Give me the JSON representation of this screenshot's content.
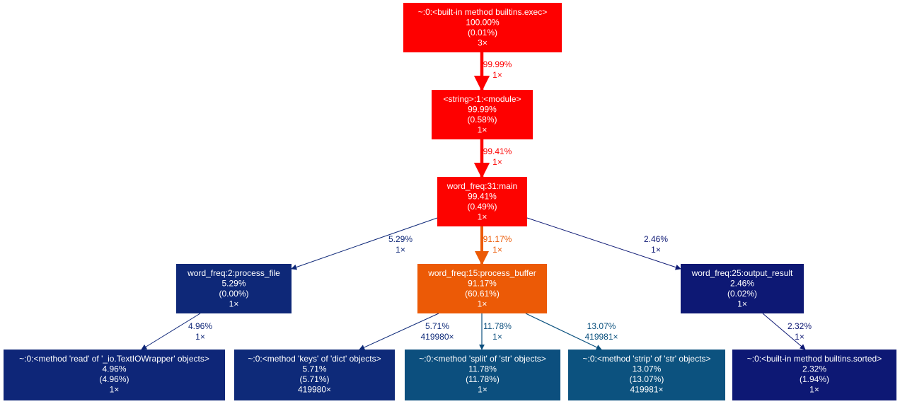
{
  "nodes": [
    {
      "id": "exec",
      "lines": [
        "~:0:<built-in method builtins.exec>",
        "100.00%",
        "(0.01%)",
        "3×"
      ],
      "color": "#fe0000"
    },
    {
      "id": "module",
      "lines": [
        "<string>:1:<module>",
        "99.99%",
        "(0.58%)",
        "1×"
      ],
      "color": "#fe0000"
    },
    {
      "id": "main",
      "lines": [
        "word_freq:31:main",
        "99.41%",
        "(0.49%)",
        "1×"
      ],
      "color": "#fd0300"
    },
    {
      "id": "process_file",
      "lines": [
        "word_freq:2:process_file",
        "5.29%",
        "(0.00%)",
        "1×"
      ],
      "color": "#0e2878"
    },
    {
      "id": "process_buffer",
      "lines": [
        "word_freq:15:process_buffer",
        "91.17%",
        "(60.61%)",
        "1×"
      ],
      "color": "#ec5a06"
    },
    {
      "id": "output_result",
      "lines": [
        "word_freq:25:output_result",
        "2.46%",
        "(0.02%)",
        "1×"
      ],
      "color": "#0d1874"
    },
    {
      "id": "read",
      "lines": [
        "~:0:<method 'read' of '_io.TextIOWrapper' objects>",
        "4.96%",
        "(4.96%)",
        "1×"
      ],
      "color": "#0e2678"
    },
    {
      "id": "keys",
      "lines": [
        "~:0:<method 'keys' of 'dict' objects>",
        "5.71%",
        "(5.71%)",
        "419980×"
      ],
      "color": "#0e2a79"
    },
    {
      "id": "split",
      "lines": [
        "~:0:<method 'split' of 'str' objects>",
        "11.78%",
        "(11.78%)",
        "1×"
      ],
      "color": "#0c4f7e"
    },
    {
      "id": "strip",
      "lines": [
        "~:0:<method 'strip' of 'str' objects>",
        "13.07%",
        "(13.07%)",
        "419981×"
      ],
      "color": "#0c527f"
    },
    {
      "id": "sorted",
      "lines": [
        "~:0:<built-in method builtins.sorted>",
        "2.32%",
        "(1.94%)",
        "1×"
      ],
      "color": "#0d1874"
    }
  ],
  "edges": [
    {
      "from": "exec",
      "to": "module",
      "lines": [
        "99.99%",
        "1×"
      ],
      "color": "#fe0000"
    },
    {
      "from": "module",
      "to": "main",
      "lines": [
        "99.41%",
        "1×"
      ],
      "color": "#fd0300"
    },
    {
      "from": "main",
      "to": "process_file",
      "lines": [
        "5.29%",
        "1×"
      ],
      "color": "#0e2878"
    },
    {
      "from": "main",
      "to": "process_buffer",
      "lines": [
        "91.17%",
        "1×"
      ],
      "color": "#ec5a06"
    },
    {
      "from": "main",
      "to": "output_result",
      "lines": [
        "2.46%",
        "1×"
      ],
      "color": "#0d1874"
    },
    {
      "from": "process_file",
      "to": "read",
      "lines": [
        "4.96%",
        "1×"
      ],
      "color": "#0e2678"
    },
    {
      "from": "process_buffer",
      "to": "keys",
      "lines": [
        "5.71%",
        "419980×"
      ],
      "color": "#0e2a79"
    },
    {
      "from": "process_buffer",
      "to": "split",
      "lines": [
        "11.78%",
        "1×"
      ],
      "color": "#0c4f7e"
    },
    {
      "from": "process_buffer",
      "to": "strip",
      "lines": [
        "13.07%",
        "419981×"
      ],
      "color": "#0c527f"
    },
    {
      "from": "output_result",
      "to": "sorted",
      "lines": [
        "2.32%",
        "1×"
      ],
      "color": "#0d1874"
    }
  ]
}
